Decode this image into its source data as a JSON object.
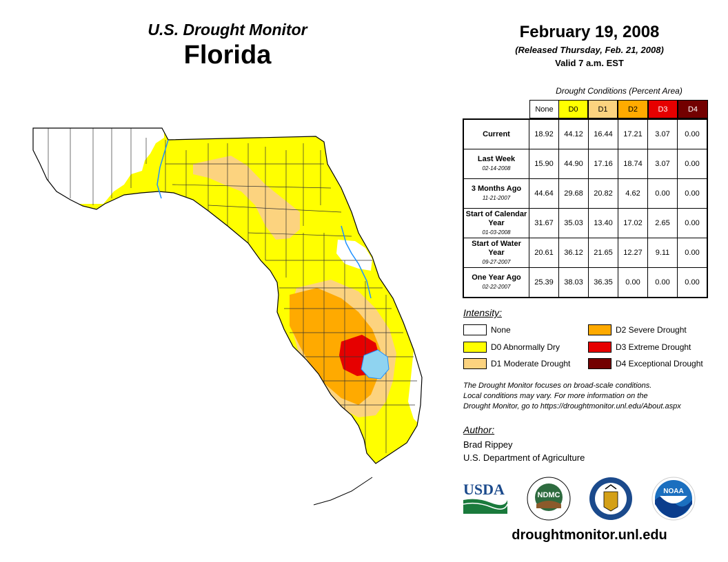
{
  "header": {
    "subtitle": "U.S. Drought Monitor",
    "state": "Florida",
    "date": "February 19, 2008",
    "released": "(Released Thursday, Feb. 21, 2008)",
    "valid": "Valid 7 a.m. EST"
  },
  "table": {
    "caption": "Drought Conditions (Percent Area)",
    "columns": [
      "None",
      "D0",
      "D1",
      "D2",
      "D3",
      "D4"
    ],
    "column_colors": [
      "#ffffff",
      "#ffff00",
      "#fcd37f",
      "#ffaa00",
      "#e60000",
      "#730000"
    ],
    "column_text_colors": [
      "#000000",
      "#000000",
      "#000000",
      "#000000",
      "#ffffff",
      "#ffffff"
    ],
    "rows": [
      {
        "label": "Current",
        "date": "",
        "values": [
          "18.92",
          "44.12",
          "16.44",
          "17.21",
          "3.07",
          "0.00"
        ]
      },
      {
        "label": "Last Week",
        "date": "02-14-2008",
        "values": [
          "15.90",
          "44.90",
          "17.16",
          "18.74",
          "3.07",
          "0.00"
        ]
      },
      {
        "label": "3 Months Ago",
        "date": "11-21-2007",
        "values": [
          "44.64",
          "29.68",
          "20.82",
          "4.62",
          "0.00",
          "0.00"
        ]
      },
      {
        "label": "Start of Calendar Year",
        "date": "01-03-2008",
        "values": [
          "31.67",
          "35.03",
          "13.40",
          "17.02",
          "2.65",
          "0.00"
        ]
      },
      {
        "label": "Start of Water Year",
        "date": "09-27-2007",
        "values": [
          "20.61",
          "36.12",
          "21.65",
          "12.27",
          "9.11",
          "0.00"
        ]
      },
      {
        "label": "One Year Ago",
        "date": "02-22-2007",
        "values": [
          "25.39",
          "38.03",
          "36.35",
          "0.00",
          "0.00",
          "0.00"
        ]
      }
    ]
  },
  "legend": {
    "title": "Intensity:",
    "items": [
      {
        "label": "None",
        "color": "#ffffff"
      },
      {
        "label": "D0 Abnormally Dry",
        "color": "#ffff00"
      },
      {
        "label": "D1 Moderate Drought",
        "color": "#fcd37f"
      },
      {
        "label": "D2 Severe Drought",
        "color": "#ffaa00"
      },
      {
        "label": "D3 Extreme Drought",
        "color": "#e60000"
      },
      {
        "label": "D4 Exceptional Drought",
        "color": "#730000"
      }
    ]
  },
  "note": {
    "line1": "The Drought Monitor focuses on broad-scale conditions.",
    "line2": "Local conditions may vary. For more information on the",
    "line3": "Drought Monitor, go to https://droughtmonitor.unl.edu/About.aspx"
  },
  "author": {
    "title": "Author:",
    "name": "Brad Rippey",
    "org": "U.S. Department of Agriculture"
  },
  "logos": {
    "usda": "USDA",
    "ndmc": "NDMC",
    "noaa": "NOAA"
  },
  "website": "droughtmonitor.unl.edu",
  "colors": {
    "lake": "#8fd3f0",
    "river": "#1e90ff",
    "county_lines": "#333333"
  }
}
